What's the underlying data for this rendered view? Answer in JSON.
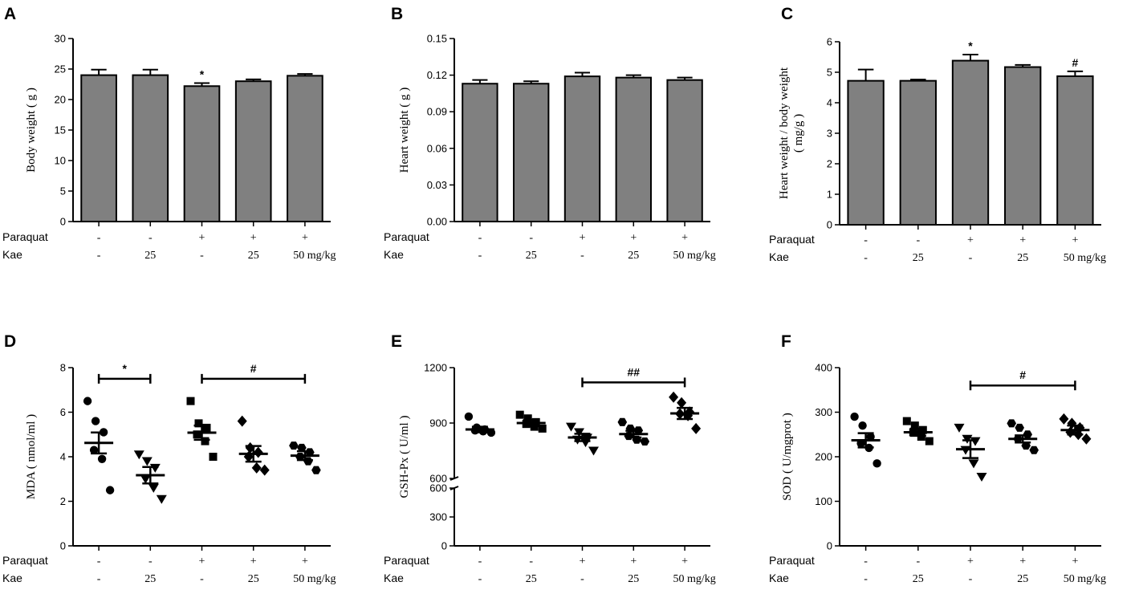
{
  "chart_data": [
    {
      "panel": "A",
      "type": "bar",
      "ylabel": "Body weight ( g )",
      "ylim": [
        0,
        30
      ],
      "yticks": [
        "0",
        "5",
        "10",
        "15",
        "20",
        "25",
        "30"
      ],
      "values": [
        24,
        24,
        22.2,
        23,
        23.9
      ],
      "errors": [
        0.9,
        0.9,
        0.5,
        0.3,
        0.3
      ],
      "bar_color": "#808080",
      "bar_annotations": [
        "",
        "",
        "*",
        "",
        ""
      ],
      "conditions": {
        "labels": [
          "Paraquat",
          "Kae"
        ],
        "paraquat": [
          "-",
          "-",
          "+",
          "+",
          "+"
        ],
        "kae": [
          "-",
          "25",
          "-",
          "25",
          "50 mg/kg"
        ]
      }
    },
    {
      "panel": "B",
      "type": "bar",
      "ylabel": "Heart weight ( g )",
      "ylim": [
        0,
        0.15
      ],
      "yticks": [
        "0.00",
        "0.03",
        "0.06",
        "0.09",
        "0.12",
        "0.15"
      ],
      "values": [
        0.113,
        0.113,
        0.119,
        0.118,
        0.116
      ],
      "errors": [
        0.003,
        0.002,
        0.003,
        0.002,
        0.002
      ],
      "bar_color": "#808080",
      "bar_annotations": [
        "",
        "",
        "",
        "",
        ""
      ],
      "conditions": {
        "labels": [
          "Paraquat",
          "Kae"
        ],
        "paraquat": [
          "-",
          "-",
          "+",
          "+",
          "+"
        ],
        "kae": [
          "-",
          "25",
          "-",
          "25",
          "50 mg/kg"
        ]
      }
    },
    {
      "panel": "C",
      "type": "bar",
      "ylabel": "Heart weight / body weight",
      "ylabel2": "( mg/g )",
      "ylim": [
        0,
        6
      ],
      "yticks": [
        "0",
        "1",
        "2",
        "3",
        "4",
        "5",
        "6"
      ],
      "values": [
        4.72,
        4.72,
        5.38,
        5.17,
        4.87
      ],
      "errors": [
        0.37,
        0.04,
        0.2,
        0.07,
        0.16
      ],
      "bar_color": "#808080",
      "bar_annotations": [
        "",
        "",
        "*",
        "",
        "#"
      ],
      "conditions": {
        "labels": [
          "Paraquat",
          "Kae"
        ],
        "paraquat": [
          "-",
          "-",
          "+",
          "+",
          "+"
        ],
        "kae": [
          "-",
          "25",
          "-",
          "25",
          "50 mg/kg"
        ]
      }
    },
    {
      "panel": "D",
      "type": "scatter",
      "ylabel": "MDA ( nmol/ml )",
      "ylim": [
        0,
        8
      ],
      "yticks": [
        "0",
        "2",
        "4",
        "6",
        "8"
      ],
      "markers": [
        "circle",
        "triangle-down",
        "square",
        "diamond",
        "hexagon"
      ],
      "means": [
        4.62,
        3.17,
        5.08,
        4.13,
        4.05
      ],
      "sems": [
        0.47,
        0.37,
        0.32,
        0.35,
        0.2
      ],
      "points": [
        [
          6.5,
          5.6,
          5.1,
          4.3,
          3.9,
          2.5
        ],
        [
          4.1,
          3.8,
          3.5,
          3.0,
          2.6,
          2.1
        ],
        [
          6.5,
          5.5,
          5.3,
          5.0,
          4.7,
          4.0
        ],
        [
          5.6,
          4.4,
          4.2,
          4.0,
          3.5,
          3.4
        ],
        [
          4.5,
          4.4,
          4.2,
          4.0,
          3.8,
          3.4
        ]
      ],
      "brackets": [
        {
          "from": 0,
          "to": 1,
          "value": 7.5,
          "label": "*"
        },
        {
          "from": 2,
          "to": 4,
          "value": 7.5,
          "label": "#"
        }
      ],
      "conditions": {
        "labels": [
          "Paraquat",
          "Kae"
        ],
        "paraquat": [
          "-",
          "-",
          "+",
          "+",
          "+"
        ],
        "kae": [
          "-",
          "25",
          "-",
          "25",
          "50 mg/kg"
        ]
      }
    },
    {
      "panel": "E",
      "type": "scatter",
      "ylabel": "GSH-Px ( U/ml )",
      "axis_break": true,
      "lower_range": [
        0,
        600
      ],
      "lower_ticks": [
        "0",
        "300",
        "600"
      ],
      "upper_range": [
        600,
        1200
      ],
      "upper_ticks": [
        "600",
        "900",
        "1200"
      ],
      "markers": [
        "circle",
        "square",
        "triangle-down",
        "hexagon",
        "diamond"
      ],
      "means": [
        865,
        900,
        822,
        840,
        952
      ],
      "sems": [
        15,
        17,
        20,
        18,
        30
      ],
      "points": [
        [
          935,
          875,
          865,
          860,
          855,
          848
        ],
        [
          945,
          925,
          905,
          895,
          880,
          870
        ],
        [
          880,
          850,
          820,
          810,
          795,
          750
        ],
        [
          905,
          870,
          860,
          830,
          810,
          800
        ],
        [
          1040,
          1010,
          960,
          950,
          940,
          870
        ]
      ],
      "brackets": [
        {
          "from": 2,
          "to": 4,
          "value": 1120,
          "label": "##"
        }
      ],
      "conditions": {
        "labels": [
          "Paraquat",
          "Kae"
        ],
        "paraquat": [
          "-",
          "-",
          "+",
          "+",
          "+"
        ],
        "kae": [
          "-",
          "25",
          "-",
          "25",
          "50 mg/kg"
        ]
      }
    },
    {
      "panel": "F",
      "type": "scatter",
      "ylabel": "SOD ( U/mgprot )",
      "ylim": [
        0,
        400
      ],
      "yticks": [
        "0",
        "100",
        "200",
        "300",
        "400"
      ],
      "markers": [
        "circle",
        "square",
        "triangle-down",
        "hexagon",
        "diamond"
      ],
      "means": [
        237,
        255,
        217,
        240,
        260
      ],
      "sems": [
        16,
        8,
        20,
        8,
        10
      ],
      "points": [
        [
          290,
          270,
          245,
          230,
          220,
          185
        ],
        [
          280,
          270,
          260,
          255,
          245,
          235
        ],
        [
          265,
          240,
          235,
          215,
          185,
          155
        ],
        [
          275,
          265,
          250,
          240,
          225,
          215
        ],
        [
          285,
          275,
          265,
          255,
          250,
          240
        ]
      ],
      "brackets": [
        {
          "from": 2,
          "to": 4,
          "value": 360,
          "label": "#"
        }
      ],
      "conditions": {
        "labels": [
          "Paraquat",
          "Kae"
        ],
        "paraquat": [
          "-",
          "-",
          "+",
          "+",
          "+"
        ],
        "kae": [
          "-",
          "25",
          "-",
          "25",
          "50 mg/kg"
        ]
      }
    }
  ]
}
